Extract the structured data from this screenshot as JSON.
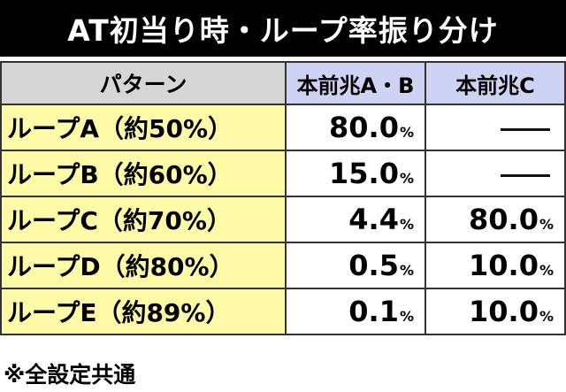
{
  "title": "AT初当り時・ループ率振り分け",
  "table": {
    "headers": [
      "パターン",
      "本前兆A・B",
      "本前兆C"
    ],
    "rows": [
      {
        "name": "ループA（約50%）",
        "ab": "80.0",
        "ab_unit": "%",
        "c": "",
        "c_unit": "",
        "c_dash": true
      },
      {
        "name": "ループB（約60%）",
        "ab": "15.0",
        "ab_unit": "%",
        "c": "",
        "c_unit": "",
        "c_dash": true
      },
      {
        "name": "ループC（約70%）",
        "ab": "4.4",
        "ab_unit": "%",
        "c": "80.0",
        "c_unit": "%",
        "c_dash": false
      },
      {
        "name": "ループD（約80%）",
        "ab": "0.5",
        "ab_unit": "%",
        "c": "10.0",
        "c_unit": "%",
        "c_dash": false
      },
      {
        "name": "ループE（約89%）",
        "ab": "0.1",
        "ab_unit": "%",
        "c": "10.0",
        "c_unit": "%",
        "c_dash": false
      }
    ]
  },
  "note": "※全設定共通"
}
